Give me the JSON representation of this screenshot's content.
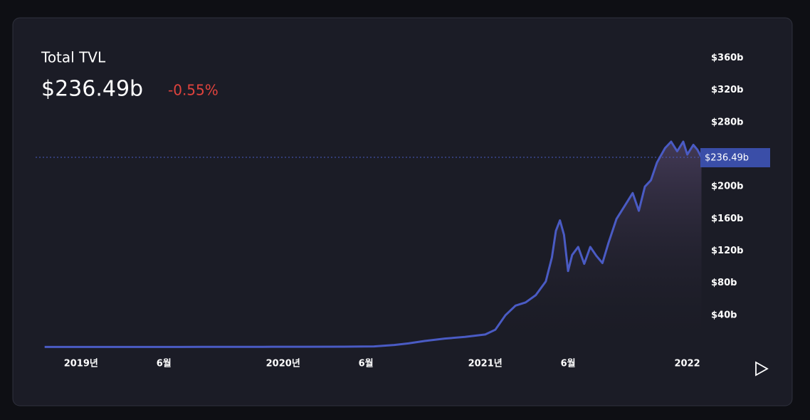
{
  "header": {
    "title": "Total TVL",
    "value": "$236.49b",
    "change": "-0.55%"
  },
  "chart_data": {
    "type": "area",
    "series": [
      {
        "name": "TVL",
        "color": "#4a5bc4",
        "x": [
          2018.82,
          2019.2,
          2019.6,
          2019.9,
          2020.1,
          2020.3,
          2020.45,
          2020.55,
          2020.62,
          2020.7,
          2020.8,
          2020.9,
          2021.0,
          2021.05,
          2021.1,
          2021.15,
          2021.2,
          2021.25,
          2021.3,
          2021.33,
          2021.35,
          2021.37,
          2021.39,
          2021.41,
          2021.43,
          2021.46,
          2021.49,
          2021.52,
          2021.55,
          2021.58,
          2021.61,
          2021.65,
          2021.69,
          2021.73,
          2021.76,
          2021.79,
          2021.82,
          2021.85,
          2021.89,
          2021.92,
          2021.95,
          2021.98,
          2022.0,
          2022.03,
          2022.05,
          2022.07
        ],
        "values": [
          0.5,
          0.5,
          0.6,
          0.7,
          0.8,
          0.9,
          1.2,
          3,
          5,
          8,
          11,
          13,
          16,
          22,
          40,
          52,
          56,
          65,
          82,
          112,
          145,
          158,
          140,
          95,
          115,
          125,
          104,
          125,
          114,
          105,
          130,
          160,
          176,
          192,
          170,
          200,
          208,
          230,
          248,
          256,
          244,
          256,
          240,
          252,
          246,
          236.49
        ]
      }
    ],
    "xlim": [
      2018.8,
      2022.1
    ],
    "xticks": [
      {
        "value": 2019,
        "label": "2019년"
      },
      {
        "value": 2019.41,
        "label": "6월"
      },
      {
        "value": 2020,
        "label": "2020년"
      },
      {
        "value": 2020.41,
        "label": "6월"
      },
      {
        "value": 2021,
        "label": "2021년"
      },
      {
        "value": 2021.41,
        "label": "6월"
      },
      {
        "value": 2022,
        "label": "2022"
      }
    ],
    "ylim": [
      0,
      380
    ],
    "yticks": [
      {
        "value": 40,
        "label": "$40b"
      },
      {
        "value": 80,
        "label": "$80b"
      },
      {
        "value": 120,
        "label": "$120b"
      },
      {
        "value": 160,
        "label": "$160b"
      },
      {
        "value": 200,
        "label": "$200b"
      },
      {
        "value": 280,
        "label": "$280b"
      },
      {
        "value": 320,
        "label": "$320b"
      },
      {
        "value": 360,
        "label": "$360b"
      }
    ],
    "price_line": {
      "value": 236.49,
      "label": "$236.49b"
    }
  }
}
